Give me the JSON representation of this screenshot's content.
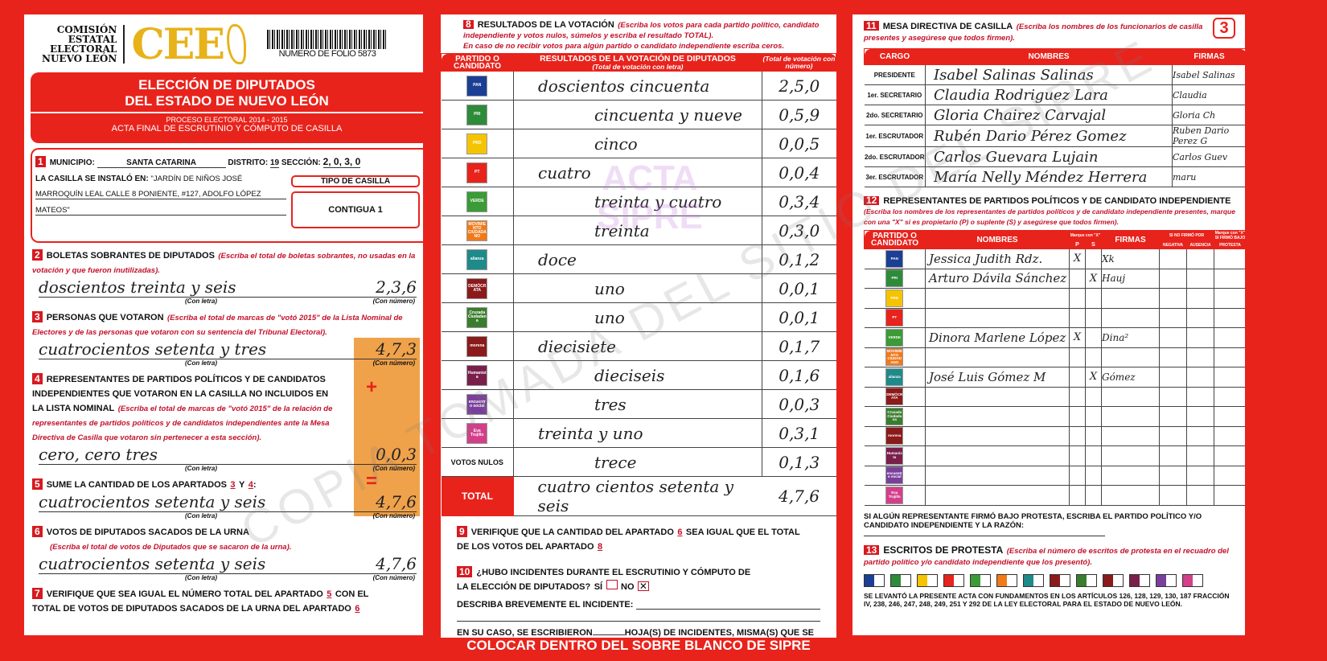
{
  "header": {
    "org_lines": [
      "COMISIÓN",
      "ESTATAL",
      "ELECTORAL",
      "NUEVO LEÓN"
    ],
    "logo": "CEE",
    "folio": "NUMERO DE FOLIO 5873",
    "title1": "ELECCIÓN DE DIPUTADOS",
    "title2": "DEL ESTADO DE NUEVO LEÓN",
    "process": "PROCESO ELECTORAL 2014 - 2015",
    "subtitle": "ACTA FINAL DE ESCRUTINIO Y CÓMPUTO DE CASILLA",
    "page_number": "3"
  },
  "s1": {
    "num": "1",
    "municipio_label": "MUNICIPIO:",
    "municipio": "SANTA CATARINA",
    "distrito_label": "DISTRITO:",
    "distrito": "19",
    "seccion_label": "SECCIÓN:",
    "seccion": "2, 0, 3, 0",
    "instalo_label": "LA CASILLA SE INSTALÓ EN:",
    "instalo_1": "\"JARDÍN DE NIÑOS JOSÉ",
    "instalo_2": "MARROQUÍN LEAL CALLE 8 PONIENTE, #127, ADOLFO LÓPEZ",
    "instalo_3": "MATEOS\"",
    "tipo_label": "TIPO DE CASILLA",
    "tipo": "CONTIGUA 1"
  },
  "captions": {
    "letra": "(Con letra)",
    "numero": "(Con número)"
  },
  "s2": {
    "num": "2",
    "title": "BOLETAS SOBRANTES DE DIPUTADOS",
    "note": "(Escriba el total de boletas sobrantes, no usadas en la votación y que fueron inutilizadas).",
    "letra": "doscientos treinta y seis",
    "numero": "2,3,6"
  },
  "s3": {
    "num": "3",
    "title": "PERSONAS QUE VOTARON",
    "note": "(Escriba el total de marcas de \"votó 2015\" de la Lista Nominal de Electores y de las personas que votaron con su sentencia del Tribunal Electoral).",
    "letra": "cuatrocientos setenta y tres",
    "numero": "4,7,3"
  },
  "s4": {
    "num": "4",
    "title": "REPRESENTANTES DE PARTIDOS POLÍTICOS Y DE CANDIDATOS INDEPENDIENTES QUE VOTARON EN LA CASILLA NO INCLUIDOS EN LA LISTA NOMINAL",
    "note": "(Escriba el total de marcas de \"votó 2015\" de la relación de representantes de partidos políticos y de candidatos independientes ante la Mesa Directiva de Casilla que votaron sin pertenecer a esta sección).",
    "letra": "cero, cero tres",
    "numero": "0,0,3",
    "plus": "+"
  },
  "s5": {
    "num": "5",
    "title": "SUME LA CANTIDAD DE LOS APARTADOS",
    "a": "3",
    "y": "Y",
    "b": "4",
    "colon": ":",
    "letra": "cuatrocientos setenta y seis",
    "numero": "4,7,6",
    "eq": "="
  },
  "s6": {
    "num": "6",
    "title": "VOTOS DE DIPUTADOS SACADOS DE LA URNA",
    "note": "(Escriba el total de votos de Diputados que se sacaron de la urna).",
    "letra": "cuatrocientos setenta y seis",
    "numero": "4,7,6"
  },
  "s7": {
    "num": "7",
    "text1": "VERIFIQUE QUE SEA IGUAL EL NÚMERO TOTAL DEL APARTADO",
    "a": "5",
    "text2": "CON EL TOTAL DE VOTOS DE DIPUTADOS SACADOS DE LA URNA DEL APARTADO",
    "b": "6"
  },
  "s8": {
    "num": "8",
    "title": "RESULTADOS DE LA VOTACIÓN",
    "note": "(Escriba los votos para cada partido político, candidato independiente y votos nulos, súmelos y escriba el resultado TOTAL).",
    "note2": "En caso de no recibir votos para algún partido o candidato independiente escriba ceros.",
    "col1": "PARTIDO O CANDIDATO",
    "col2": "RESULTADOS DE LA VOTACIÓN DE DIPUTADOS",
    "col2sub": "(Total de votación con letra)",
    "col3": "(Total de votación con número)",
    "rows": [
      {
        "party": "PAN",
        "color": "#1b3f94",
        "letra": "doscientos cincuenta",
        "numero": "2,5,0"
      },
      {
        "party": "PRI",
        "color": "#2e8b3a",
        "letra": "cincuenta y nueve",
        "numero": "0,5,9"
      },
      {
        "party": "PRD",
        "color": "#f5c400",
        "letra": "cinco",
        "numero": "0,0,5"
      },
      {
        "party": "PT",
        "color": "#e8231c",
        "letra": "cuatro",
        "numero": "0,0,4"
      },
      {
        "party": "VERDE",
        "color": "#3a9b37",
        "letra": "treinta y cuatro",
        "numero": "0,3,4"
      },
      {
        "party": "MOVIMIENTO CIUDADANO",
        "color": "#f07a1a",
        "letra": "treinta",
        "numero": "0,3,0"
      },
      {
        "party": "alianza",
        "color": "#1f8a8a",
        "letra": "doce",
        "numero": "0,1,2"
      },
      {
        "party": "DEMÓCRATA",
        "color": "#8b1a1a",
        "letra": "uno",
        "numero": "0,0,1"
      },
      {
        "party": "Cruzada Ciudadana",
        "color": "#3b7d2e",
        "letra": "uno",
        "numero": "0,0,1"
      },
      {
        "party": "morena",
        "color": "#8b1a1a",
        "letra": "diecisiete",
        "numero": "0,1,7"
      },
      {
        "party": "Humanista",
        "color": "#7a1f4a",
        "letra": "dieciseis",
        "numero": "0,1,6"
      },
      {
        "party": "encuentro social",
        "color": "#7a3f9b",
        "letra": "tres",
        "numero": "0,0,3"
      },
      {
        "party": "Eva Trujillo",
        "color": "#d43f8a",
        "letra": "treinta y uno",
        "numero": "0,3,1"
      }
    ],
    "nulos_label": "VOTOS NULOS",
    "nulos_letra": "trece",
    "nulos_numero": "0,1,3",
    "total_label": "TOTAL",
    "total_letra": "cuatro cientos setenta y seis",
    "total_numero": "4,7,6",
    "watermark": "ACTA SIPRE"
  },
  "s9": {
    "num": "9",
    "text1": "VERIFIQUE QUE LA CANTIDAD DEL APARTADO",
    "a": "6",
    "text2": "SEA IGUAL QUE EL TOTAL DE LOS VOTOS DEL APARTADO",
    "b": "8"
  },
  "s10": {
    "num": "10",
    "q": "¿HUBO INCIDENTES DURANTE EL ESCRUTINIO Y CÓMPUTO DE LA ELECCIÓN DE DIPUTADOS?",
    "si": "SÍ",
    "no": "NO",
    "no_checked": true,
    "describe": "DESCRIBA BREVEMENTE EL INCIDENTE:",
    "hojas1": "EN SU CASO, SE ESCRIBIERON",
    "hojas2": "HOJA(S) DE INCIDENTES, MISMA(S) QUE SE ANEXA(N) A LA PRESENTE ACTA."
  },
  "bottom_banner": "COLOCAR DENTRO DEL SOBRE BLANCO DE SIPRE",
  "s11": {
    "num": "11",
    "title": "MESA DIRECTIVA DE CASILLA",
    "note": "(Escriba los nombres de los funcionarios de casilla presentes y asegúrese que todos firmen).",
    "cols": [
      "CARGO",
      "NOMBRES",
      "FIRMAS"
    ],
    "rows": [
      {
        "cargo": "PRESIDENTE",
        "nombre": "Isabel Salinas Salinas",
        "firma": "Isabel Salinas"
      },
      {
        "cargo": "1er. SECRETARIO",
        "nombre": "Claudia Rodriguez Lara",
        "firma": "Claudia"
      },
      {
        "cargo": "2do. SECRETARIO",
        "nombre": "Gloria Chairez Carvajal",
        "firma": "Gloria Ch"
      },
      {
        "cargo": "1er. ESCRUTADOR",
        "nombre": "Rubén Dario Pérez Gomez",
        "firma": "Ruben Dario Perez G"
      },
      {
        "cargo": "2do. ESCRUTADOR",
        "nombre": "Carlos Guevara Lujain",
        "firma": "Carlos Guev"
      },
      {
        "cargo": "3er. ESCRUTADOR",
        "nombre": "María Nelly Méndez Herrera",
        "firma": "maru"
      }
    ]
  },
  "s12": {
    "num": "12",
    "title": "REPRESENTANTES DE PARTIDOS POLÍTICOS Y DE CANDIDATO INDEPENDIENTE",
    "note": "(Escriba los nombres de los representantes de partidos políticos y de candidato independiente presentes, marque con una \"X\" si es propietario (P) o suplente (S) y asegúrese que todos firmen).",
    "cols": {
      "partido": "PARTIDO O CANDIDATO",
      "nombres": "NOMBRES",
      "marque": "Marque con \"X\"",
      "p": "P",
      "s": "S",
      "firmas": "FIRMAS",
      "nofirmo": "SI NO FIRMÓ POR",
      "negativa": "NEGATIVA",
      "ausencia": "AUSENCIA",
      "protesta_h": "Marque con \"X\" SI FIRMÓ BAJO",
      "protesta": "PROTESTA"
    },
    "rows": [
      {
        "party": "PAN",
        "nombre": "Jessica Judith Rdz.",
        "p": "X",
        "s": "",
        "firma": "Xk"
      },
      {
        "party": "PRI",
        "nombre": "Arturo Dávila Sánchez",
        "p": "",
        "s": "X",
        "firma": "Hauj"
      },
      {
        "party": "PRD",
        "nombre": "",
        "p": "",
        "s": "",
        "firma": ""
      },
      {
        "party": "PT",
        "nombre": "",
        "p": "",
        "s": "",
        "firma": ""
      },
      {
        "party": "VERDE",
        "nombre": "Dinora Marlene López",
        "p": "X",
        "s": "",
        "firma": "Dina²"
      },
      {
        "party": "MOVIMIENTO CIUDADANO",
        "nombre": "",
        "p": "",
        "s": "",
        "firma": ""
      },
      {
        "party": "alianza",
        "nombre": "José Luis Gómez M",
        "p": "",
        "s": "X",
        "firma": "Gómez"
      },
      {
        "party": "DEMÓCRATA",
        "nombre": "",
        "p": "",
        "s": "",
        "firma": ""
      },
      {
        "party": "Cruzada Ciudadana",
        "nombre": "",
        "p": "",
        "s": "",
        "firma": ""
      },
      {
        "party": "morena",
        "nombre": "",
        "p": "",
        "s": "",
        "firma": ""
      },
      {
        "party": "Humanista",
        "nombre": "",
        "p": "",
        "s": "",
        "firma": ""
      },
      {
        "party": "encuentro social",
        "nombre": "",
        "p": "",
        "s": "",
        "firma": ""
      },
      {
        "party": "Eva Trujillo",
        "nombre": "",
        "p": "",
        "s": "",
        "firma": ""
      }
    ],
    "protesta_text": "SI ALGÚN REPRESENTANTE FIRMÓ BAJO PROTESTA, ESCRIBA EL PARTIDO POLÍTICO Y/O CANDIDATO INDEPENDIENTE Y LA RAZÓN:"
  },
  "s13": {
    "num": "13",
    "title": "ESCRITOS DE PROTESTA",
    "note": "(Escriba el número de escritos de protesta en el recuadro del partido político y/o candidato independiente que los presentó).",
    "legal": "SE LEVANTÓ LA PRESENTE ACTA CON FUNDAMENTOS EN LOS ARTÍCULOS 126, 128, 129, 130, 187 FRACCIÓN IV, 238, 246, 247, 248, 249, 251 Y 292 DE LA LEY ELECTORAL PARA EL ESTADO DE NUEVO LEÓN."
  },
  "watermark": "COPIA TOMADA DEL SITIO DEL SIPRE"
}
